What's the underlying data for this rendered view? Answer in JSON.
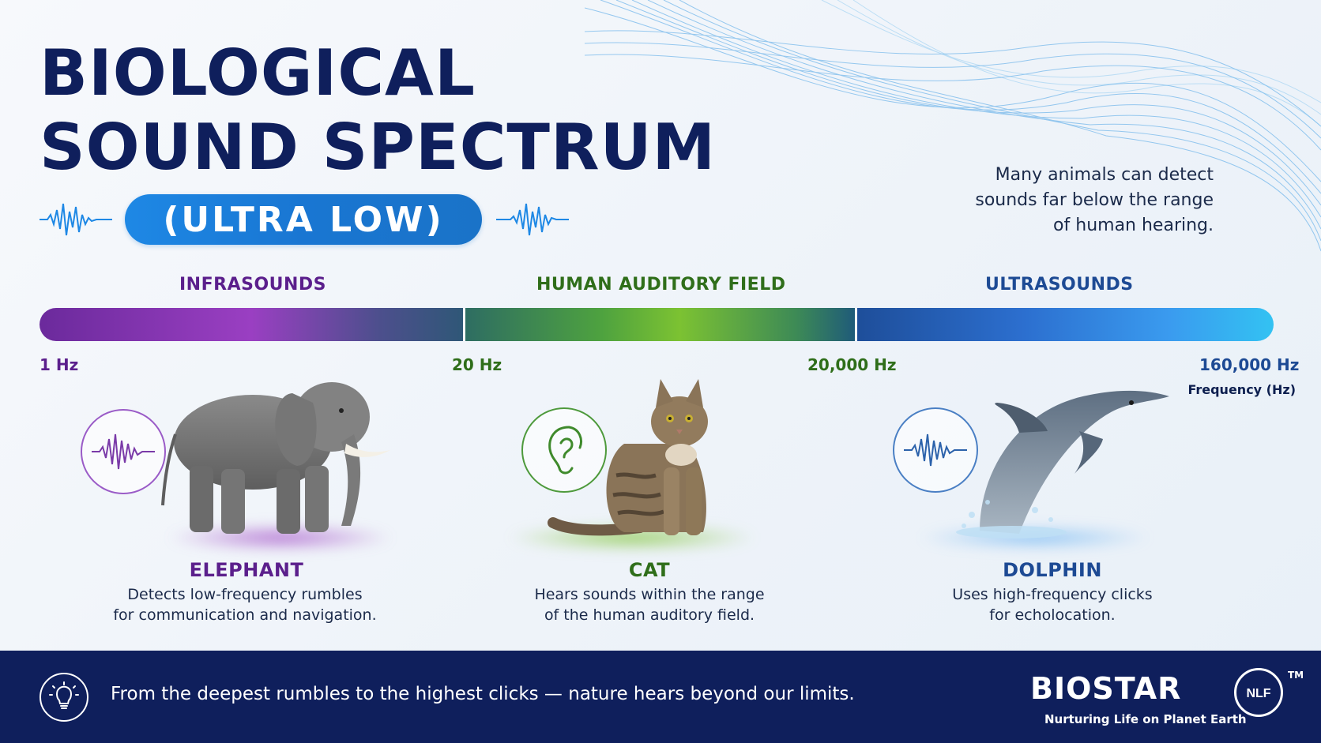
{
  "title_line1": "BIOLOGICAL",
  "title_line2": "SOUND SPECTRUM",
  "subtitle": "(ULTRA LOW)",
  "intro": "Many animals can detect sounds far below the range of human hearing.",
  "regions": [
    {
      "label": "INFRASOUNDS",
      "color": "#5b1f8c"
    },
    {
      "label": "HUMAN AUDITORY FIELD",
      "color": "#2f6e1a"
    },
    {
      "label": "ULTRASOUNDS",
      "color": "#1d4a94"
    }
  ],
  "ticks": [
    {
      "label": "1 Hz",
      "color": "#5b1f8c"
    },
    {
      "label": "20 Hz",
      "color": "#2f6e1a"
    },
    {
      "label": "20,000 Hz",
      "color": "#2f6e1a"
    },
    {
      "label": "160,000 Hz",
      "color": "#1d4a94"
    }
  ],
  "frequency_unit": "Frequency (Hz)",
  "animals": [
    {
      "name": "ELEPHANT",
      "desc_line1": "Detects low-frequency rumbles",
      "desc_line2": "for communication and navigation.",
      "color": "#5b1f8c",
      "icon": "sound-wave-icon"
    },
    {
      "name": "CAT",
      "desc_line1": "Hears sounds within the range",
      "desc_line2": "of the human auditory field.",
      "color": "#2f6e1a",
      "icon": "ear-icon"
    },
    {
      "name": "DOLPHIN",
      "desc_line1": "Uses high-frequency clicks",
      "desc_line2": "for echolocation.",
      "color": "#1d4a94",
      "icon": "sound-wave-icon"
    }
  ],
  "footer": {
    "text": "From the deepest rumbles to the highest clicks — nature hears beyond our limits.",
    "icon": "lightbulb-icon"
  },
  "brand": {
    "name": "BIOSTAR",
    "seal": "NLF",
    "tm": "TM",
    "tagline": "Nurturing Life on Planet Earth"
  }
}
